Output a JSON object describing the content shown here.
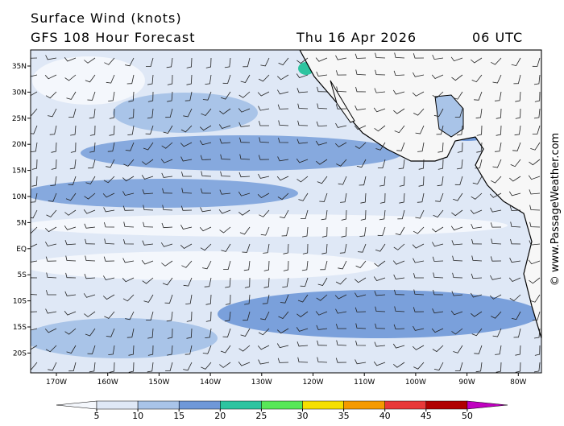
{
  "header": {
    "title": "Surface Wind (knots)",
    "model": "GFS 108 Hour Forecast",
    "date": "Thu 16 Apr 2026",
    "time": "06 UTC"
  },
  "map": {
    "lat_labels": [
      "35N",
      "30N",
      "25N",
      "20N",
      "15N",
      "10N",
      "5N",
      "EQ",
      "5S",
      "10S",
      "15S",
      "20S"
    ],
    "lon_labels": [
      "170W",
      "160W",
      "150W",
      "140W",
      "130W",
      "120W",
      "110W",
      "100W",
      "90W",
      "80W"
    ]
  },
  "colorbar": {
    "ticks": [
      5,
      10,
      15,
      20,
      25,
      30,
      35,
      40,
      45,
      50
    ],
    "colors": [
      "#f4f7fc",
      "#dfe8f6",
      "#a9c4e8",
      "#6f98d8",
      "#2dc4a0",
      "#58e858",
      "#f5e000",
      "#f59a00",
      "#e83838",
      "#b00000",
      "#c000c0"
    ]
  },
  "watermark": "© www.PassageWeather.com"
}
